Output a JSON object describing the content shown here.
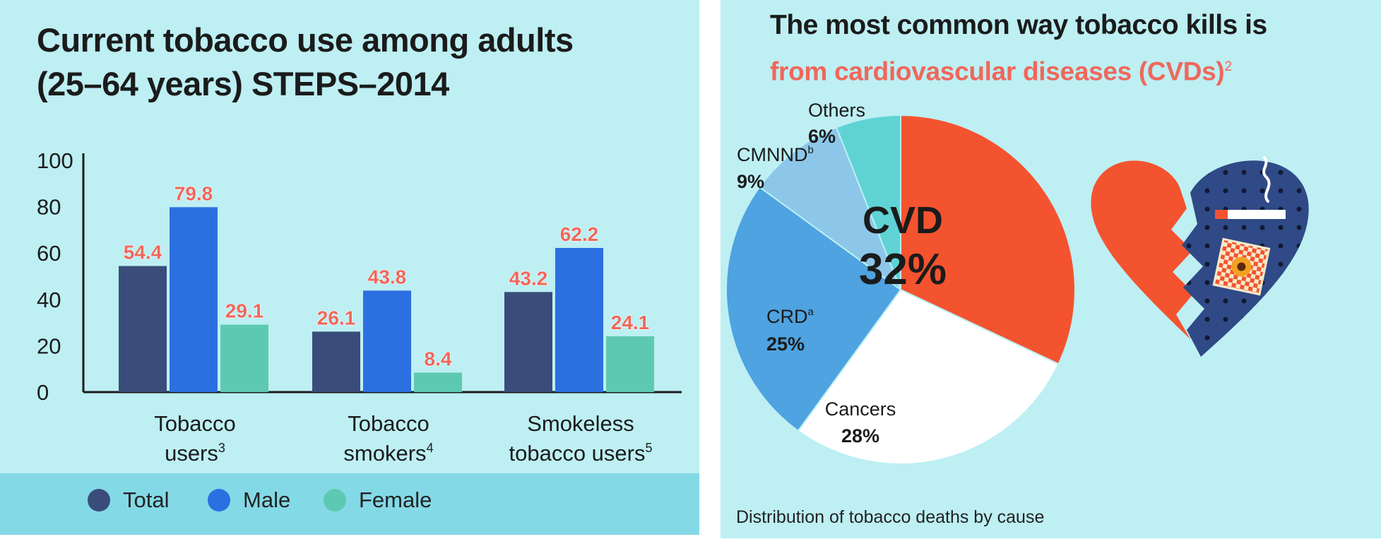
{
  "chart_data": [
    {
      "type": "bar",
      "title": "Current tobacco use among adults (25–64 years) STEPS–2014",
      "title_lines": [
        "Current tobacco use among adults",
        "(25–64 years) STEPS–2014"
      ],
      "categories": [
        {
          "lines": [
            "Tobacco",
            "users"
          ],
          "sup": "3"
        },
        {
          "lines": [
            "Tobacco",
            "smokers"
          ],
          "sup": "4"
        },
        {
          "lines": [
            "Smokeless",
            "tobacco users"
          ],
          "sup": "5"
        }
      ],
      "series": [
        {
          "name": "Total",
          "values": [
            54.4,
            26.1,
            43.2
          ]
        },
        {
          "name": "Male",
          "values": [
            79.8,
            43.8,
            62.2
          ]
        },
        {
          "name": "Female",
          "values": [
            29.1,
            8.4,
            24.1
          ]
        }
      ],
      "value_labels": [
        [
          "54.4",
          "26.1",
          "43.2"
        ],
        [
          "79.8",
          "43.8",
          "62.2"
        ],
        [
          "29.1",
          "8.4",
          "24.1"
        ]
      ],
      "ylim": [
        0,
        100
      ],
      "yticks": [
        "0",
        "20",
        "40",
        "60",
        "80",
        "100"
      ],
      "grid": false,
      "legend_position": "bottom",
      "colors": {
        "Total": "#3a4d7a",
        "Male": "#2c6fe0",
        "Female": "#5ec9b2",
        "value_label": "#f0675a"
      }
    },
    {
      "type": "pie",
      "title": "The most common way tobacco kills is",
      "subtitle": "from cardiovascular diseases (CVDs)",
      "subtitle_sup": "2",
      "caption": "Distribution of tobacco deaths by cause",
      "slices": [
        {
          "label": "CVD",
          "sup": "",
          "percent_label": "32%",
          "value": 32,
          "color": "#f4532f"
        },
        {
          "label": "Cancers",
          "sup": "",
          "percent_label": "28%",
          "value": 28,
          "color": "#ffffff"
        },
        {
          "label": "CRD",
          "sup": "a",
          "percent_label": "25%",
          "value": 25,
          "color": "#4ea3e0"
        },
        {
          "label": "CMNND",
          "sup": "b",
          "percent_label": "9%",
          "value": 9,
          "color": "#8cc7ea"
        },
        {
          "label": "Others",
          "sup": "",
          "percent_label": "6%",
          "value": 6,
          "color": "#5fd3d4"
        }
      ],
      "illustration": "broken-heart-cigarette-icon"
    }
  ]
}
